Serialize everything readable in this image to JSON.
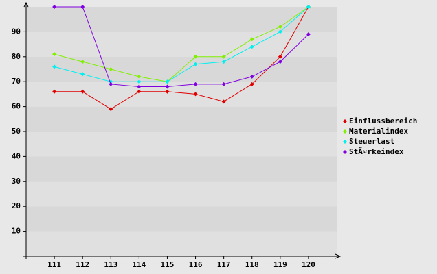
{
  "chart_data": {
    "type": "line",
    "categories": [
      "111",
      "112",
      "113",
      "114",
      "115",
      "116",
      "117",
      "118",
      "119",
      "120"
    ],
    "series": [
      {
        "name": "Einflussbereich",
        "color": "#e00000",
        "values": [
          66,
          66,
          59,
          66,
          66,
          65,
          62,
          69,
          80,
          100
        ]
      },
      {
        "name": "Materialindex",
        "color": "#80f000",
        "values": [
          81,
          78,
          75,
          72,
          70,
          80,
          80,
          87,
          92,
          100
        ]
      },
      {
        "name": "Steuerlast",
        "color": "#00f0f0",
        "values": [
          76,
          73,
          70,
          70,
          70,
          77,
          78,
          84,
          90,
          100
        ]
      },
      {
        "name": "StÃ¤rkeindex",
        "color": "#8000e0",
        "values": [
          100,
          100,
          69,
          68,
          68,
          69,
          69,
          72,
          78,
          89
        ]
      }
    ],
    "ylim": [
      0,
      100
    ],
    "yticks": [
      10,
      20,
      30,
      40,
      50,
      60,
      70,
      80,
      90
    ],
    "grid": true,
    "legend": "right"
  }
}
